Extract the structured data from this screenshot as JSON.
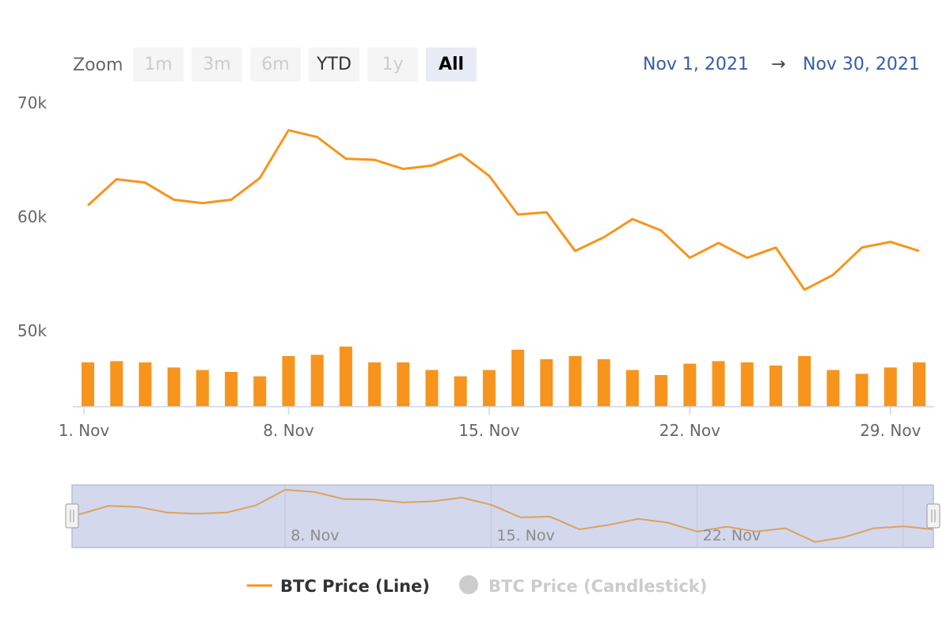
{
  "range_selector": {
    "zoom_label": "Zoom",
    "buttons": [
      {
        "label": "1m",
        "state": "disabled"
      },
      {
        "label": "3m",
        "state": "disabled"
      },
      {
        "label": "6m",
        "state": "disabled"
      },
      {
        "label": "YTD",
        "state": "enabled"
      },
      {
        "label": "1y",
        "state": "disabled"
      },
      {
        "label": "All",
        "state": "active"
      }
    ],
    "from_date": "Nov 1, 2021",
    "arrow": "→",
    "to_date": "Nov 30, 2021"
  },
  "colors": {
    "series": "#f7941d",
    "navigator_fill": "#d3d8ec",
    "navigator_line": "#d9a35e",
    "axis": "#ccd6eb",
    "legend_hidden": "#cccccc"
  },
  "legend": {
    "items": [
      {
        "name": "BTC Price (Line)",
        "visible": true,
        "symbol": "line"
      },
      {
        "name": "BTC Price (Candlestick)",
        "visible": false,
        "symbol": "circle"
      }
    ]
  },
  "chart_data": {
    "type": "line",
    "x": [
      "2021-11-01",
      "2021-11-02",
      "2021-11-03",
      "2021-11-04",
      "2021-11-05",
      "2021-11-06",
      "2021-11-07",
      "2021-11-08",
      "2021-11-09",
      "2021-11-10",
      "2021-11-11",
      "2021-11-12",
      "2021-11-13",
      "2021-11-14",
      "2021-11-15",
      "2021-11-16",
      "2021-11-17",
      "2021-11-18",
      "2021-11-19",
      "2021-11-20",
      "2021-11-21",
      "2021-11-22",
      "2021-11-23",
      "2021-11-24",
      "2021-11-25",
      "2021-11-26",
      "2021-11-27",
      "2021-11-28",
      "2021-11-29",
      "2021-11-30"
    ],
    "series": [
      {
        "name": "BTC Price (Line)",
        "values": [
          61000,
          63300,
          63000,
          61500,
          61200,
          61500,
          63400,
          67600,
          67000,
          65100,
          65000,
          64200,
          64500,
          65500,
          63600,
          60200,
          60400,
          57000,
          58200,
          59800,
          58800,
          56400,
          57700,
          56400,
          57300,
          53600,
          54900,
          57300,
          57800,
          57000
        ]
      }
    ],
    "volume": {
      "relative_heights": [
        0.7,
        0.72,
        0.7,
        0.62,
        0.58,
        0.55,
        0.48,
        0.8,
        0.82,
        0.95,
        0.7,
        0.7,
        0.58,
        0.48,
        0.58,
        0.9,
        0.75,
        0.8,
        0.75,
        0.58,
        0.5,
        0.68,
        0.72,
        0.7,
        0.65,
        0.8,
        0.58,
        0.52,
        0.62,
        0.7
      ]
    },
    "y_ticks": [
      "50k",
      "60k",
      "70k"
    ],
    "ylim": [
      50000,
      70000
    ],
    "x_ticks": [
      "1. Nov",
      "8. Nov",
      "15. Nov",
      "22. Nov",
      "29. Nov"
    ],
    "navigator_ticks": [
      "8. Nov",
      "15. Nov",
      "22. Nov"
    ],
    "grid": false,
    "legend_position": "bottom"
  }
}
